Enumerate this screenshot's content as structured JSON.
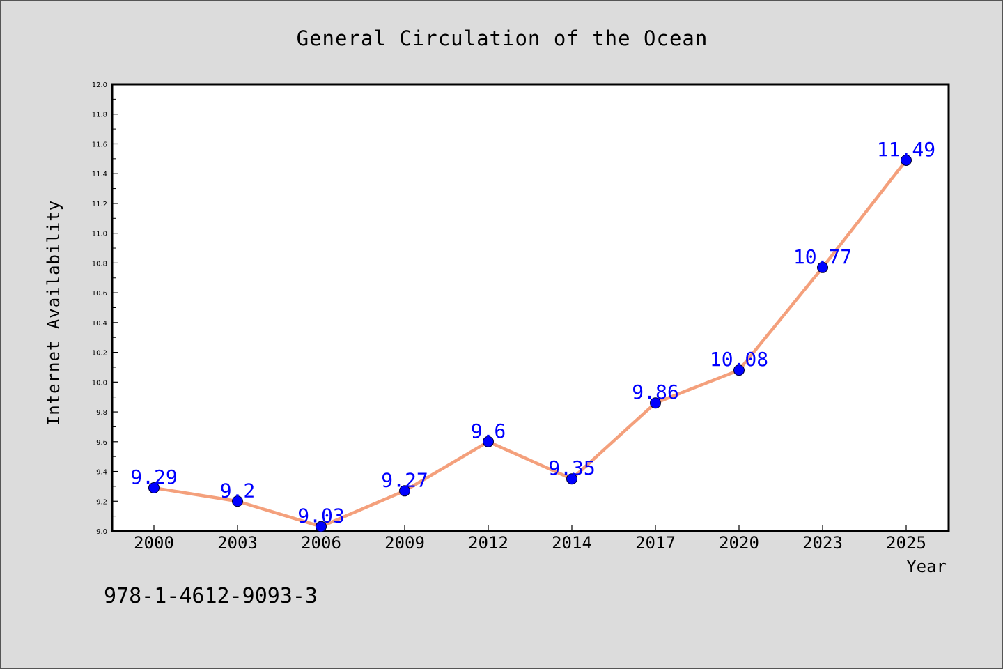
{
  "chart_data": {
    "type": "line",
    "title": "General Circulation of the Ocean",
    "xlabel": "Year",
    "ylabel": "Internet Availability",
    "categories": [
      "2000",
      "2003",
      "2006",
      "2009",
      "2012",
      "2014",
      "2017",
      "2020",
      "2023",
      "2025"
    ],
    "series": [
      {
        "values": [
          9.29,
          9.2,
          9.03,
          9.27,
          9.6,
          9.35,
          9.86,
          10.08,
          10.77,
          11.49
        ],
        "data_labels": [
          "9.29",
          "9.2",
          "9.03",
          "9.27",
          "9.6",
          "9.35",
          "9.86",
          "10.08",
          "10.77",
          "11.49"
        ]
      }
    ],
    "ylim": [
      9.0,
      12.0
    ],
    "yticks": [
      "9.0",
      "9.2",
      "9.4",
      "9.6",
      "9.8",
      "10.0",
      "10.2",
      "10.4",
      "10.6",
      "10.8",
      "11.0",
      "11.2",
      "11.4",
      "11.6",
      "11.8",
      "12.0"
    ],
    "grid": false,
    "legend": "none",
    "annotation": "978-1-4612-9093-3",
    "colors": {
      "line": "#f4a07c",
      "marker": "#0000ff",
      "data_label": "#0000ff",
      "background": "#dcdcdc",
      "plot_area": "#ffffff"
    }
  }
}
